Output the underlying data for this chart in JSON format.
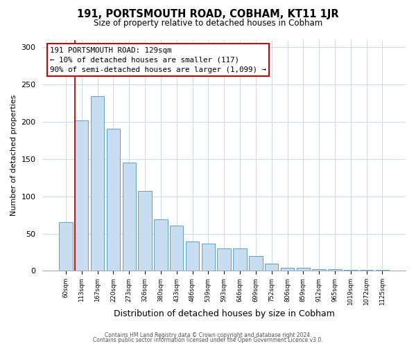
{
  "title": "191, PORTSMOUTH ROAD, COBHAM, KT11 1JR",
  "subtitle": "Size of property relative to detached houses in Cobham",
  "xlabel": "Distribution of detached houses by size in Cobham",
  "ylabel": "Number of detached properties",
  "bar_labels": [
    "60sqm",
    "113sqm",
    "167sqm",
    "220sqm",
    "273sqm",
    "326sqm",
    "380sqm",
    "433sqm",
    "486sqm",
    "539sqm",
    "593sqm",
    "646sqm",
    "699sqm",
    "752sqm",
    "806sqm",
    "859sqm",
    "912sqm",
    "965sqm",
    "1019sqm",
    "1072sqm",
    "1125sqm"
  ],
  "bar_values": [
    65,
    202,
    234,
    191,
    145,
    107,
    69,
    61,
    39,
    37,
    30,
    30,
    20,
    10,
    4,
    4,
    2,
    2,
    1,
    1,
    1
  ],
  "bar_color": "#c8ddf0",
  "bar_edge_color": "#5a9fd4",
  "vline_x_index": 1,
  "vline_color": "#cc0000",
  "annotation_box_text": "191 PORTSMOUTH ROAD: 129sqm\n← 10% of detached houses are smaller (117)\n90% of semi-detached houses are larger (1,099) →",
  "box_edge_color": "#cc0000",
  "ylim": [
    0,
    310
  ],
  "yticks": [
    0,
    50,
    100,
    150,
    200,
    250,
    300
  ],
  "footer_line1": "Contains HM Land Registry data © Crown copyright and database right 2024.",
  "footer_line2": "Contains public sector information licensed under the Open Government Licence v3.0.",
  "background_color": "#ffffff",
  "grid_color": "#ccd9e8"
}
